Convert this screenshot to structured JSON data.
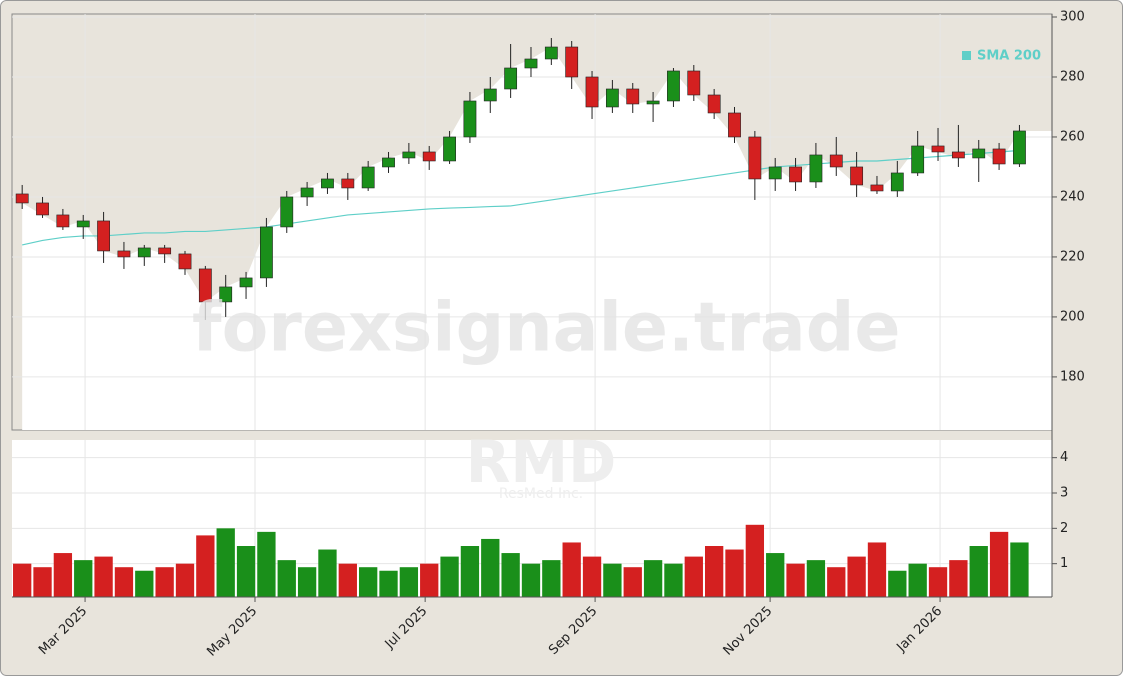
{
  "chart_data": {
    "type": "candlestick",
    "watermark": "forexsignale.trade",
    "symbol": "RMD",
    "company": "ResMed Inc.",
    "legend": "SMA 200",
    "sma_color": "#5fcfc8",
    "up_color": "#1a8f1a",
    "down_color": "#d42020",
    "x": [
      0,
      1,
      2,
      3,
      4,
      5,
      6,
      7,
      8,
      9,
      10,
      11,
      12,
      13,
      14,
      15,
      16,
      17,
      18,
      19,
      20,
      21,
      22,
      23,
      24,
      25,
      26,
      27,
      28,
      29,
      30,
      31,
      32,
      33,
      34,
      35,
      36,
      37,
      38,
      39,
      40,
      41,
      42,
      43,
      44,
      45,
      46,
      47,
      48,
      49
    ],
    "open": [
      241,
      238,
      234,
      230,
      232,
      222,
      220,
      223,
      221,
      216,
      205,
      210,
      213,
      230,
      240,
      243,
      246,
      243,
      250,
      253,
      255,
      252,
      260,
      272,
      276,
      283,
      286,
      290,
      280,
      270,
      276,
      271,
      272,
      282,
      274,
      268,
      260,
      246,
      250,
      245,
      254,
      250,
      244,
      242,
      248,
      257,
      255,
      253,
      256,
      251
    ],
    "high": [
      244,
      240,
      236,
      234,
      235,
      225,
      224,
      224,
      222,
      217,
      214,
      215,
      233,
      242,
      245,
      248,
      248,
      252,
      255,
      258,
      257,
      262,
      275,
      280,
      291,
      290,
      293,
      292,
      282,
      279,
      278,
      275,
      283,
      284,
      276,
      270,
      262,
      253,
      253,
      258,
      260,
      255,
      247,
      252,
      262,
      263,
      264,
      259,
      258,
      264
    ],
    "low": [
      236,
      233,
      229,
      226,
      218,
      216,
      217,
      218,
      214,
      199,
      200,
      206,
      210,
      228,
      237,
      241,
      239,
      242,
      248,
      251,
      249,
      251,
      258,
      268,
      273,
      280,
      284,
      276,
      266,
      268,
      268,
      265,
      270,
      272,
      266,
      258,
      239,
      242,
      242,
      243,
      247,
      240,
      241,
      240,
      247,
      252,
      250,
      245,
      249,
      250
    ],
    "close": [
      238,
      234,
      230,
      232,
      222,
      220,
      223,
      221,
      216,
      205,
      210,
      213,
      230,
      240,
      243,
      246,
      243,
      250,
      253,
      255,
      252,
      260,
      272,
      276,
      283,
      286,
      290,
      280,
      270,
      276,
      271,
      272,
      282,
      274,
      268,
      260,
      246,
      250,
      245,
      254,
      250,
      244,
      242,
      248,
      257,
      255,
      253,
      256,
      251,
      262
    ],
    "volume": [
      1.0,
      0.9,
      1.3,
      1.1,
      1.2,
      0.9,
      0.8,
      0.9,
      1.0,
      1.8,
      2.0,
      1.5,
      1.9,
      1.1,
      0.9,
      1.4,
      1.0,
      0.9,
      0.8,
      0.9,
      1.0,
      1.2,
      1.5,
      1.7,
      1.3,
      1.0,
      1.1,
      1.6,
      1.2,
      1.0,
      0.9,
      1.1,
      1.0,
      1.2,
      1.5,
      1.4,
      2.1,
      1.3,
      1.0,
      1.1,
      0.9,
      1.2,
      1.6,
      0.8,
      1.0,
      0.9,
      1.1,
      1.5,
      1.9,
      1.6
    ],
    "sma": [
      224,
      225.5,
      226.5,
      227,
      227,
      227.5,
      228,
      228,
      228.5,
      228.5,
      229,
      229.5,
      230,
      231,
      232,
      233,
      234,
      234.5,
      235,
      235.5,
      236,
      236.3,
      236.5,
      236.8,
      237,
      238,
      239,
      240,
      241,
      242,
      243,
      244,
      245,
      246,
      247,
      248,
      249,
      250,
      250.5,
      251,
      251.5,
      252,
      252,
      252.5,
      253,
      253.5,
      254,
      254.5,
      255,
      255.5
    ],
    "xlim": [
      -0.5,
      50.6
    ],
    "xticks": [
      {
        "value": 3.09,
        "label": "Mar 2025"
      },
      {
        "value": 11.44,
        "label": "May 2025"
      },
      {
        "value": 19.8,
        "label": "Jul 2025"
      },
      {
        "value": 28.15,
        "label": "Sep 2025"
      },
      {
        "value": 36.75,
        "label": "Nov 2025"
      },
      {
        "value": 45.1,
        "label": "Jan 2026"
      }
    ],
    "ylim": [
      162.3,
      301
    ],
    "yticks": [
      180,
      200,
      220,
      240,
      260,
      280,
      300
    ],
    "volume_ylim": [
      0,
      4.5
    ],
    "volume_yticks": [
      1,
      2,
      3,
      4
    ],
    "grid": true
  }
}
